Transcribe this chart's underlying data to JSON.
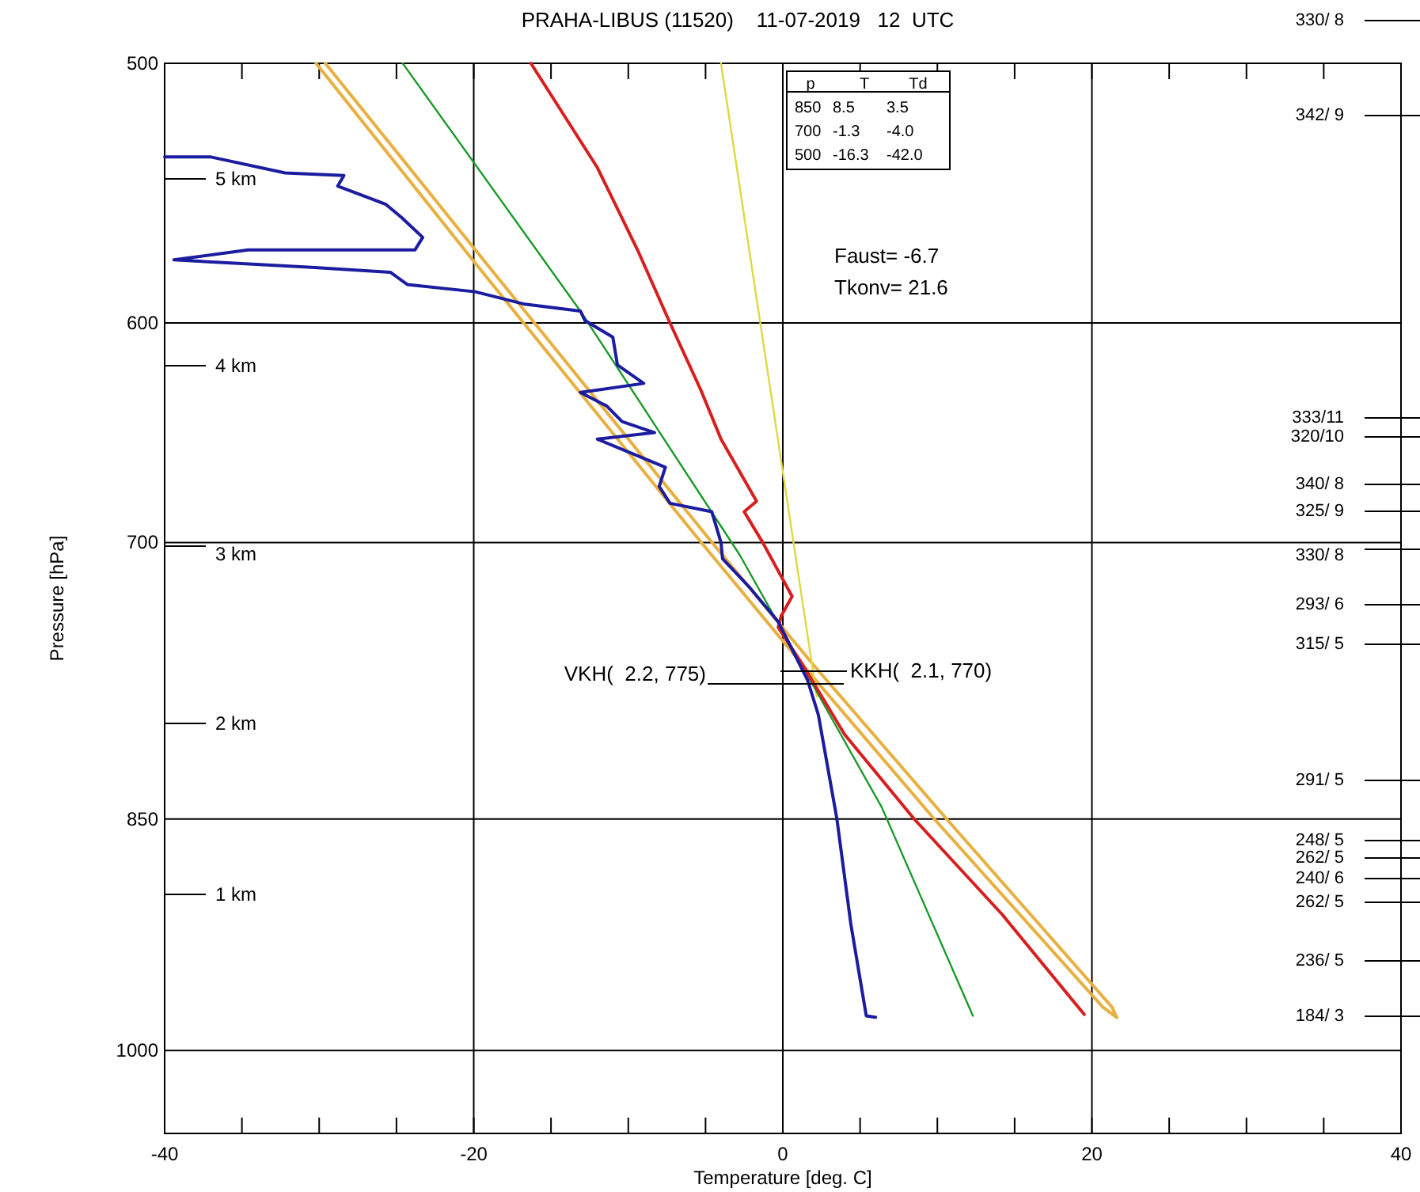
{
  "chart_data": {
    "type": "line",
    "title": "PRAHA-LIBUS (11520)    11-07-2019   12  UTC",
    "xlabel": "Temperature [deg. C]",
    "ylabel": "Pressure [hPa]",
    "xlim": [
      -40,
      40
    ],
    "ylim": [
      1060,
      500
    ],
    "log": "y",
    "grid": true,
    "xticks": [
      -40,
      {
        "value": -35,
        "label": null
      },
      {
        "value": -30,
        "label": null
      },
      {
        "value": -25,
        "label": null
      },
      -20,
      {
        "value": -15,
        "label": null
      },
      {
        "value": -10,
        "label": null
      },
      {
        "value": -5,
        "label": null
      },
      0,
      {
        "value": 5,
        "label": null
      },
      {
        "value": 10,
        "label": null
      },
      {
        "value": 15,
        "label": null
      },
      20,
      {
        "value": 25,
        "label": null
      },
      {
        "value": 30,
        "label": null
      },
      {
        "value": 35,
        "label": null
      },
      40
    ],
    "yticks": [
      500,
      600,
      700,
      850,
      1000
    ],
    "series": [
      {
        "color": "#e8b040",
        "x": [
          -30.2,
          -20.2,
          -5.6,
          1.3,
          9.8,
          20.7,
          21.6
        ],
        "values": [
          500,
          573,
          697,
          763,
          850,
          970,
          977
        ]
      },
      {
        "color": "#e8b040",
        "x": [
          -29.6,
          -19.5,
          -4.9,
          2.0,
          10.6,
          21.3,
          21.6
        ],
        "values": [
          500,
          573,
          697,
          763,
          850,
          970,
          977
        ]
      },
      {
        "color": "#e0d840",
        "x": [
          -4.0,
          2.2
        ],
        "values": [
          500,
          780
        ]
      },
      {
        "color": "#1a9a2a",
        "x": [
          -24.6,
          -13.1,
          -2.8,
          6.4,
          12.3
        ],
        "values": [
          500,
          595,
          706,
          843,
          976
        ]
      },
      {
        "color": "#d81e1e",
        "x": [
          -16.3,
          -12.0,
          -9.4,
          -7.3,
          -5.3,
          -4.0,
          -1.7,
          -2.5,
          -1.3,
          0.6,
          -0.1,
          -0.3,
          1.3,
          4.0,
          8.5,
          14.2,
          19.5
        ],
        "values": [
          500,
          538,
          570,
          600,
          629,
          651,
          680,
          685,
          700,
          727,
          737,
          743,
          763,
          801,
          850,
          909,
          975
        ]
      },
      {
        "color": "#1c1ca0",
        "x": [
          -40.0,
          -37.0,
          -32.2,
          -28.4,
          -28.8,
          -25.7,
          -24.7,
          -23.3,
          -23.8,
          -34.6,
          -39.4,
          -30.5,
          -25.4,
          -24.3,
          -19.9,
          -16.8,
          -13.1,
          -12.8,
          -11.0,
          -10.7,
          -9.0,
          -13.1,
          -11.4,
          -10.4,
          -8.3,
          -12.0,
          -7.6,
          -8.0,
          -7.3,
          -4.6,
          -4.0,
          -3.9,
          -2.2,
          -0.3,
          1.6,
          2.3,
          3.5,
          4.4,
          5.4,
          6.0
        ],
        "values": [
          534,
          534,
          540,
          541,
          545,
          552,
          557,
          565,
          570,
          570,
          574,
          577,
          579,
          584,
          587,
          592,
          595,
          599,
          606,
          618,
          626,
          630,
          636,
          643,
          648,
          651,
          664,
          673,
          681,
          685,
          700,
          708,
          722,
          740,
          771,
          790,
          850,
          915,
          976,
          977
        ]
      }
    ],
    "annotations": [
      "p",
      "T",
      "Td",
      "850",
      "8.5",
      "3.5",
      "700",
      "-1.3",
      "-4.0",
      "500",
      "-16.3",
      "-42.0",
      "Faust= -6.7",
      "Tkonv= 21.6",
      "VKH(  2.2, 775)",
      "KKH(  2.1, 770)",
      "5 km",
      "4 km",
      "3 km",
      "2 km",
      "1 km",
      "330/ 8",
      "342/ 9",
      "333/11",
      "320/10",
      "340/ 8",
      "325/ 9",
      "330/ 8",
      "293/ 6",
      "315/ 5",
      "291/ 5",
      "248/ 5",
      "262/ 5",
      "240/ 6",
      "262/ 5",
      "236/ 5",
      "184/ 3"
    ]
  }
}
